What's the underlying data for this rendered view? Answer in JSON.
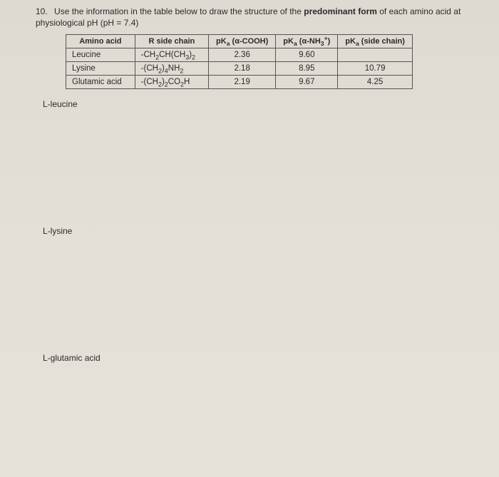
{
  "question": {
    "number": "10.",
    "text_pre": "Use the information in the table below to draw the structure of the ",
    "text_bold": "predominant form",
    "text_post": " of each amino acid at physiological pH (pH = 7.4)"
  },
  "table": {
    "headers": {
      "c1": "Amino acid",
      "c2": "R side chain",
      "c3_pre": "pK",
      "c3_sub": "a",
      "c3_post": " (α-COOH)",
      "c4_pre": "pK",
      "c4_sub": "a",
      "c4_post": " (α-NH",
      "c4_sub2": "3",
      "c4_sup": "+",
      "c4_close": ")",
      "c5_pre": "pK",
      "c5_sub": "a",
      "c5_post": "   (side chain)"
    },
    "rows": [
      {
        "name": "Leucine",
        "r_pre": "-CH",
        "r_s1": "2",
        "r_mid": "CH(CH",
        "r_s2": "3",
        "r_post": ")",
        "r_s3": "2",
        "r_tail": "",
        "pka1": "2.36",
        "pka2": "9.60",
        "pka3": ""
      },
      {
        "name": "Lysine",
        "r_pre": "-(CH",
        "r_s1": "2",
        "r_mid": ")",
        "r_s2": "4",
        "r_post": "NH",
        "r_s3": "2",
        "r_tail": "",
        "pka1": "2.18",
        "pka2": "8.95",
        "pka3": "10.79"
      },
      {
        "name": "Glutamic acid",
        "r_pre": "-(CH",
        "r_s1": "2",
        "r_mid": ")",
        "r_s2": "2",
        "r_post": "CO",
        "r_s3": "2",
        "r_tail": "H",
        "pka1": "2.19",
        "pka2": "9.67",
        "pka3": "4.25"
      }
    ],
    "col_widths": [
      "96px",
      "120px",
      "104px",
      "104px",
      "120px"
    ],
    "border_color": "#555",
    "font_size": 11.5
  },
  "sections": {
    "s1": "L-leucine",
    "s2": "L-lysine",
    "s3": "L-glutamic acid"
  },
  "colors": {
    "page_bg_top": "#dedad2",
    "page_bg_bottom": "#e6e2da",
    "text": "#2a2a2a"
  }
}
